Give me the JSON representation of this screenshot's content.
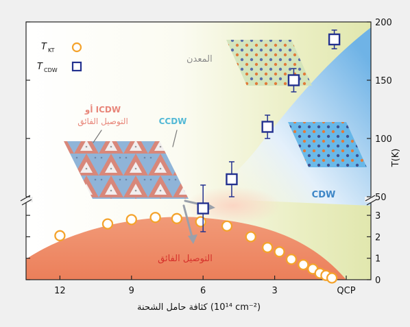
{
  "chart_data": {
    "type": "scatter",
    "x_axis": {
      "label": "كثافة حامل الشحنة (10¹⁴ cm⁻²)",
      "ticks": [
        "12",
        "9",
        "6",
        "3",
        "QCP"
      ],
      "reversed": true
    },
    "y_axis": {
      "label": "T(K)",
      "upper_ticks": [
        "200",
        "150",
        "100",
        "50"
      ],
      "lower_ticks": [
        "3",
        "2",
        "1",
        "0"
      ],
      "broken": true,
      "upper_range": [
        0,
        200
      ],
      "lower_range": [
        0,
        3.5
      ]
    },
    "legend": [
      {
        "label": "T",
        "sub": "KT",
        "marker": "circle",
        "color": "#f4a32c"
      },
      {
        "label": "T",
        "sub": "CDW",
        "marker": "square",
        "color": "#23318f"
      }
    ],
    "series": [
      {
        "name": "T_KT",
        "marker": "circle",
        "color": "#f4a32c",
        "points": [
          [
            12,
            2.05
          ],
          [
            10.0,
            2.6
          ],
          [
            9.0,
            2.8
          ],
          [
            8.0,
            2.9
          ],
          [
            7.1,
            2.85
          ],
          [
            6.1,
            2.7
          ],
          [
            5.0,
            2.5
          ],
          [
            4.0,
            2.0
          ],
          [
            3.3,
            1.5
          ],
          [
            2.8,
            1.3
          ],
          [
            2.3,
            0.95
          ],
          [
            1.8,
            0.7
          ],
          [
            1.4,
            0.5
          ],
          [
            1.1,
            0.3
          ],
          [
            0.85,
            0.2
          ],
          [
            0.6,
            0.08
          ]
        ]
      },
      {
        "name": "T_CDW",
        "marker": "square",
        "color": "#23318f",
        "points": [
          {
            "x": 6.0,
            "y": 40,
            "err": 20
          },
          {
            "x": 4.8,
            "y": 65,
            "err": 15
          },
          {
            "x": 3.3,
            "y": 110,
            "err": 10
          },
          {
            "x": 2.2,
            "y": 150,
            "err": 10
          },
          {
            "x": 0.5,
            "y": 185,
            "err": 8
          }
        ]
      }
    ],
    "region_labels": {
      "metal": "المعدن",
      "cdw": "CDW",
      "superconducting": "التوصيل الفائق",
      "icdw": "ICDW أو",
      "icdw_sub": "التوصيل الفائق",
      "ccdw": "CCDW"
    },
    "colors": {
      "metal_region": "#e6ebb9",
      "cdw_region": "#8fc3ec",
      "sc_region": "#ef8d69",
      "orange_text": "#e8867a",
      "cyan_text": "#53b9d6",
      "blue_text": "#3d86c6",
      "red_text": "#d6312b",
      "gray_text": "#8c8c8c"
    }
  }
}
